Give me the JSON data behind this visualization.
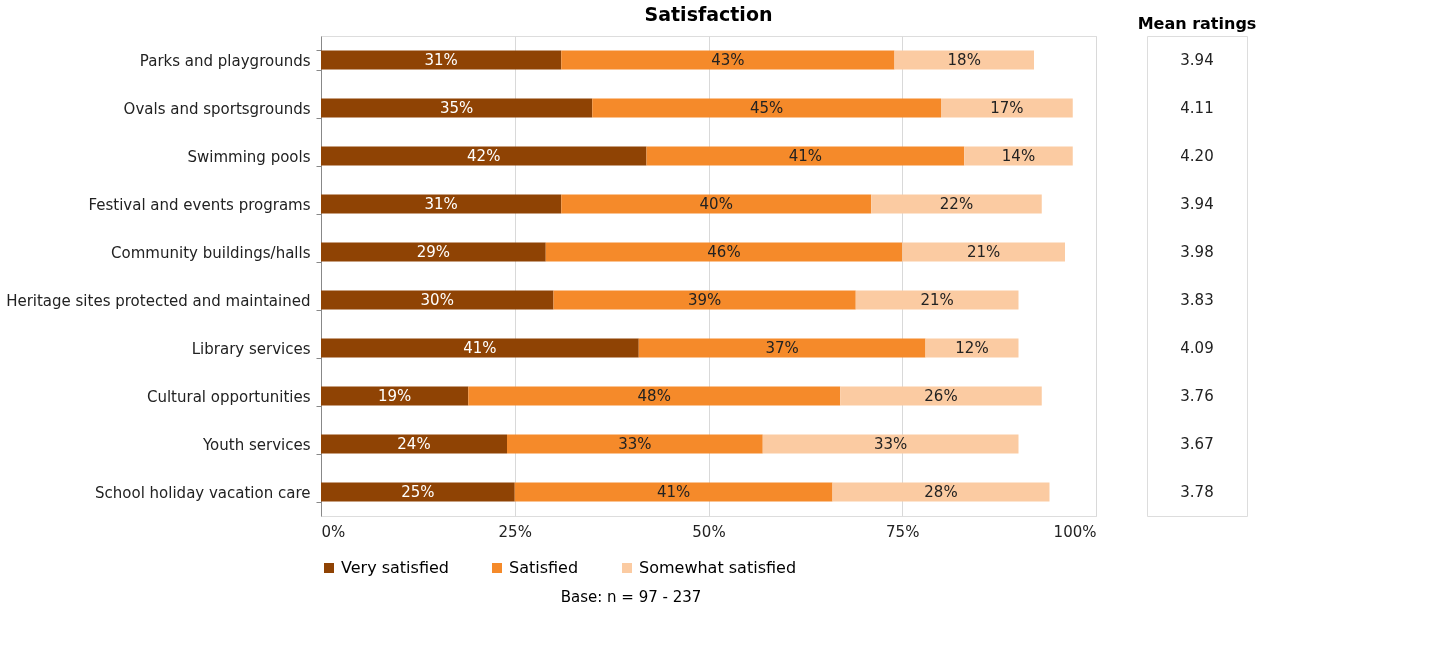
{
  "chart_data": [
    {
      "type": "bar",
      "orientation": "horizontal",
      "stacked": true,
      "title": "Satisfaction",
      "categories": [
        "Parks and playgrounds",
        "Ovals and sportsgrounds",
        "Swimming pools",
        "Festival and events programs",
        "Community buildings/halls",
        "Heritage sites protected and maintained",
        "Library services",
        "Cultural opportunities",
        "Youth services",
        "School holiday vacation care"
      ],
      "series": [
        {
          "name": "Very satisfied",
          "color": "#8f4304",
          "values": [
            31,
            35,
            42,
            31,
            29,
            30,
            41,
            19,
            24,
            25
          ],
          "value_labels": [
            "31%",
            "35%",
            "42%",
            "31%",
            "29%",
            "30%",
            "41%",
            "19%",
            "24%",
            "25%"
          ]
        },
        {
          "name": "Satisfied",
          "color": "#f58a2a",
          "values": [
            43,
            45,
            41,
            40,
            46,
            39,
            37,
            48,
            33,
            41
          ],
          "value_labels": [
            "43%",
            "45%",
            "41%",
            "40%",
            "46%",
            "39%",
            "37%",
            "48%",
            "33%",
            "41%"
          ]
        },
        {
          "name": "Somewhat satisfied",
          "color": "#fbcba2",
          "values": [
            18,
            17,
            14,
            22,
            21,
            21,
            12,
            26,
            33,
            28
          ],
          "value_labels": [
            "18%",
            "17%",
            "14%",
            "22%",
            "21%",
            "21%",
            "12%",
            "26%",
            "33%",
            "28%"
          ]
        }
      ],
      "xlim": [
        0,
        100
      ],
      "xticks": [
        {
          "value": 0,
          "label": "0%"
        },
        {
          "value": 25,
          "label": "25%"
        },
        {
          "value": 50,
          "label": "50%"
        },
        {
          "value": 75,
          "label": "75%"
        },
        {
          "value": 100,
          "label": "100%"
        }
      ],
      "grid": "x",
      "legend": "bottom",
      "annotations": [
        "Base: n = 97 - 237"
      ]
    },
    {
      "type": "other",
      "title": "Mean ratings",
      "categories": [
        null,
        null,
        null,
        null,
        null,
        null,
        null,
        null,
        null,
        null
      ],
      "values": [
        3.94,
        4.11,
        4.2,
        3.94,
        3.98,
        3.83,
        4.09,
        3.76,
        3.67,
        3.78
      ],
      "value_labels": [
        "3.94",
        "4.11",
        "4.20",
        "3.94",
        "3.98",
        "3.83",
        "4.09",
        "3.76",
        "3.67",
        "3.78"
      ]
    }
  ]
}
